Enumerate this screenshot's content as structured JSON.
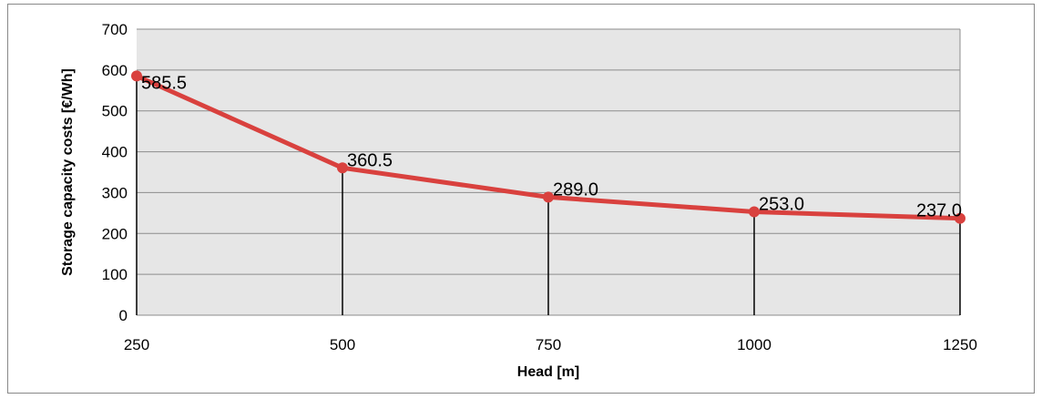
{
  "chart_data": {
    "type": "line",
    "title": "",
    "xlabel": "Head [m]",
    "ylabel": "Storage capacity costs [€/Wh]",
    "x": [
      250,
      500,
      750,
      1000,
      1250
    ],
    "x_tick_labels": [
      "250",
      "500",
      "750",
      "1000",
      "1250"
    ],
    "y_tick_labels": [
      "0",
      "100",
      "200",
      "300",
      "400",
      "500",
      "600",
      "700"
    ],
    "xlim": [
      250,
      1250
    ],
    "ylim": [
      0,
      700
    ],
    "grid": true,
    "drop_lines": true,
    "legend": "none",
    "series": [
      {
        "values": [
          585.5,
          360.5,
          289.0,
          253.0,
          237.0
        ],
        "data_labels": [
          "585.5",
          "360.5",
          "289.0",
          "253.0",
          "237.0"
        ],
        "color": "#d9413e"
      }
    ],
    "colors": {
      "plot_background": "#e6e6e6",
      "gridline": "#8c8c8c"
    }
  }
}
